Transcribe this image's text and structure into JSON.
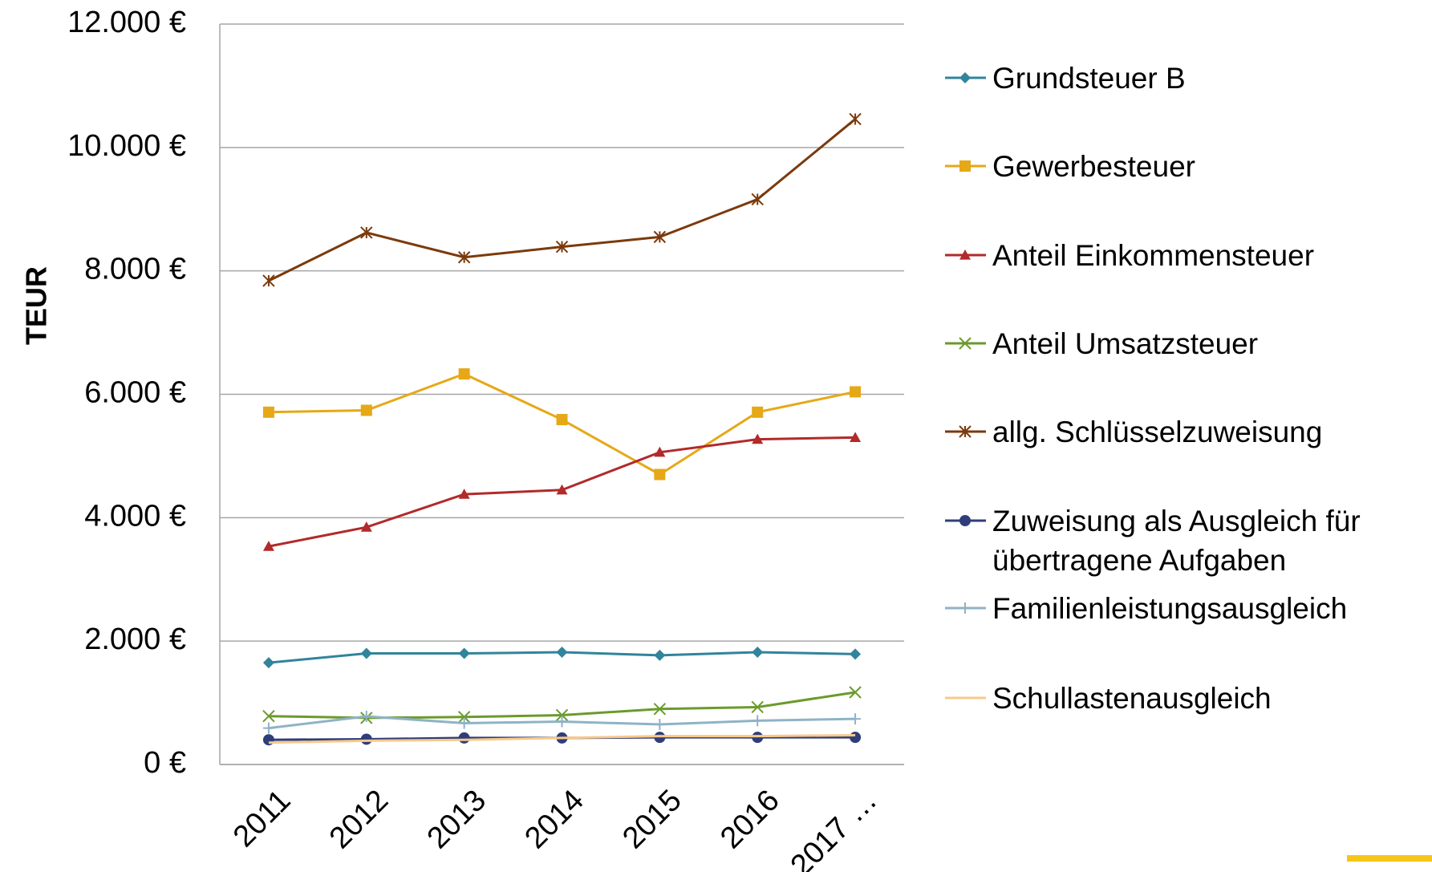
{
  "chart_data": {
    "type": "line",
    "y_label": "TEUR",
    "categories": [
      "2011",
      "2012",
      "2013",
      "2014",
      "2015",
      "2016",
      "2017 …"
    ],
    "ylim": [
      0,
      12000
    ],
    "yticks": [
      {
        "value": 0,
        "label": "0 €"
      },
      {
        "value": 2000,
        "label": "2.000 €"
      },
      {
        "value": 4000,
        "label": "4.000 €"
      },
      {
        "value": 6000,
        "label": "6.000 €"
      },
      {
        "value": 8000,
        "label": "8.000 €"
      },
      {
        "value": 10000,
        "label": "10.000 €"
      },
      {
        "value": 12000,
        "label": "12.000 €"
      }
    ],
    "grid": true,
    "legend": "right",
    "series": [
      {
        "name": "Grundsteuer B",
        "color": "#31849b",
        "marker": "diamond",
        "values": [
          1650,
          1800,
          1800,
          1820,
          1770,
          1820,
          1790
        ]
      },
      {
        "name": "Gewerbesteuer",
        "color": "#e6a817",
        "marker": "square",
        "values": [
          5710,
          5740,
          6330,
          5590,
          4700,
          5710,
          6040
        ]
      },
      {
        "name": " Anteil Einkommensteuer",
        "color": "#b22a2a",
        "marker": "triangle",
        "values": [
          3535,
          3846,
          4380,
          4450,
          5060,
          5270,
          5300
        ]
      },
      {
        "name": "Anteil Umsatzsteuer",
        "color": "#6b9a2d",
        "marker": "x",
        "values": [
          784,
          755,
          770,
          800,
          900,
          930,
          1170
        ]
      },
      {
        "name": "allg. Schlüsselzuweisung",
        "color": "#7b3a0c",
        "marker": "star",
        "values": [
          7840,
          8620,
          8220,
          8390,
          8550,
          9160,
          10460
        ]
      },
      {
        "name": "Zuweisung als Ausgleich für übertragene Aufgaben",
        "color": "#2f3e7a",
        "marker": "circle",
        "values": [
          400,
          410,
          430,
          430,
          440,
          440,
          440
        ]
      },
      {
        "name": "Familienleistungsausgleich",
        "color": "#8fb3c6",
        "marker": "plus",
        "values": [
          590,
          780,
          670,
          695,
          650,
          710,
          740
        ]
      },
      {
        "name": "Schullastenausgleich",
        "color": "#f8c98a",
        "marker": "none",
        "values": [
          355,
          385,
          400,
          430,
          460,
          460,
          475
        ]
      }
    ]
  }
}
